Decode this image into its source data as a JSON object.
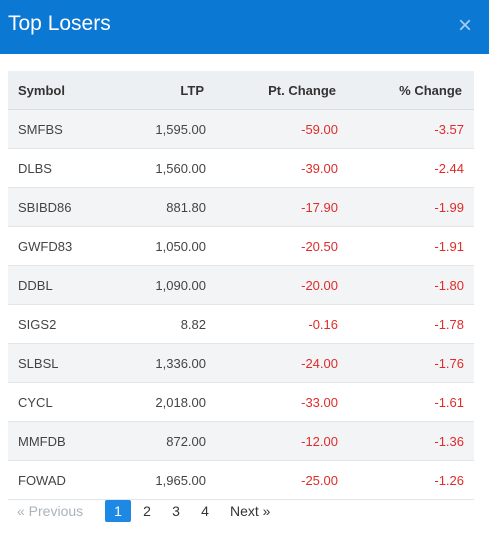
{
  "dialog": {
    "title": "Top Losers",
    "close_glyph": "×"
  },
  "table": {
    "columns": {
      "symbol": "Symbol",
      "ltp": "LTP",
      "pt_change": "Pt. Change",
      "pct_change": "% Change"
    },
    "rows": [
      {
        "symbol": "SMFBS",
        "ltp": "1,595.00",
        "pt_change": "-59.00",
        "pct_change": "-3.57"
      },
      {
        "symbol": "DLBS",
        "ltp": "1,560.00",
        "pt_change": "-39.00",
        "pct_change": "-2.44"
      },
      {
        "symbol": "SBIBD86",
        "ltp": "881.80",
        "pt_change": "-17.90",
        "pct_change": "-1.99"
      },
      {
        "symbol": "GWFD83",
        "ltp": "1,050.00",
        "pt_change": "-20.50",
        "pct_change": "-1.91"
      },
      {
        "symbol": "DDBL",
        "ltp": "1,090.00",
        "pt_change": "-20.00",
        "pct_change": "-1.80"
      },
      {
        "symbol": "SIGS2",
        "ltp": "8.82",
        "pt_change": "-0.16",
        "pct_change": "-1.78"
      },
      {
        "symbol": "SLBSL",
        "ltp": "1,336.00",
        "pt_change": "-24.00",
        "pct_change": "-1.76"
      },
      {
        "symbol": "CYCL",
        "ltp": "2,018.00",
        "pt_change": "-33.00",
        "pct_change": "-1.61"
      },
      {
        "symbol": "MMFDB",
        "ltp": "872.00",
        "pt_change": "-12.00",
        "pct_change": "-1.36"
      },
      {
        "symbol": "FOWAD",
        "ltp": "1,965.00",
        "pt_change": "-25.00",
        "pct_change": "-1.26"
      }
    ]
  },
  "pagination": {
    "previous_label": "« Previous",
    "pages": [
      "1",
      "2",
      "3",
      "4"
    ],
    "current_page": "1",
    "next_label": "Next »"
  },
  "colors": {
    "header_bg": "#0b78d4",
    "negative": "#e02b2b",
    "active_page": "#1e88e5"
  }
}
